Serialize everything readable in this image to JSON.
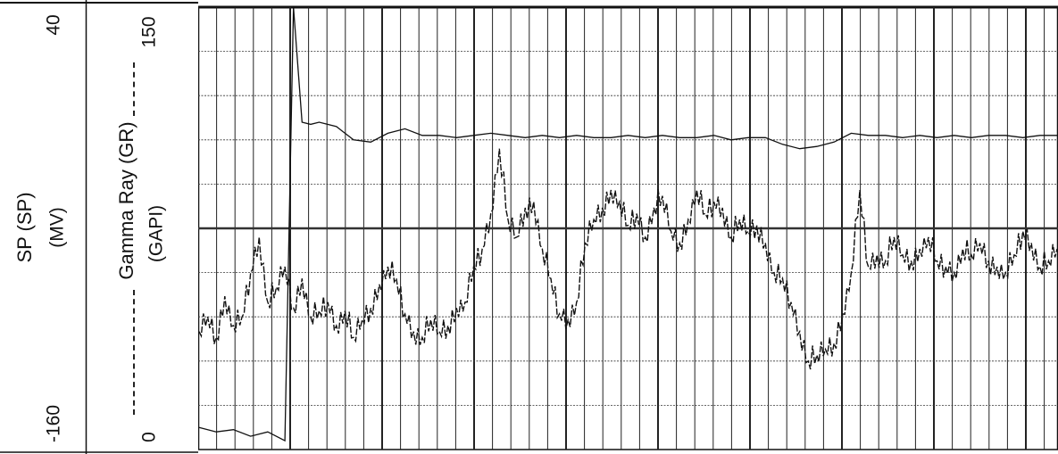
{
  "header": {
    "sp": {
      "name": "SP (SP)",
      "unit": "(MV)",
      "min": "-160",
      "max": "40"
    },
    "gr": {
      "name": "Gamma Ray (GR)",
      "unit": "(GAPI)",
      "min": "0",
      "max": "150"
    }
  },
  "chart_data": {
    "type": "line",
    "title": "",
    "xlabel": "",
    "ylabel": "",
    "orientation": "horizontal-depth-axis",
    "grid": true,
    "curves": [
      {
        "name": "SP (SP)",
        "unit": "MV",
        "range": [
          -160,
          40
        ],
        "color": "#111111",
        "x": [
          0,
          2,
          4,
          6,
          8,
          10,
          11,
          12,
          13,
          14,
          16,
          18,
          20,
          22,
          24,
          26,
          28,
          30,
          32,
          34,
          36,
          38,
          40,
          42,
          44,
          46,
          48,
          50,
          52,
          54,
          56,
          58,
          60,
          62,
          64,
          66,
          68,
          70,
          72,
          74,
          76,
          78,
          80,
          82,
          84,
          86,
          88,
          90,
          92,
          94,
          96,
          98,
          100
        ],
        "values": [
          -150,
          -152,
          -151,
          -154,
          -152,
          -156,
          40,
          -12,
          -13,
          -12,
          -14,
          -20,
          -21,
          -17,
          -15,
          -18,
          -18,
          -19,
          -18,
          -17,
          -18,
          -19,
          -18,
          -19,
          -18,
          -19,
          -19,
          -18,
          -19,
          -18,
          -19,
          -19,
          -18,
          -20,
          -19,
          -19,
          -22,
          -24,
          -23,
          -21,
          -17,
          -18,
          -18,
          -19,
          -18,
          -19,
          -18,
          -19,
          -18,
          -18,
          -19,
          -18,
          -18
        ]
      },
      {
        "name": "Gamma Ray (GR)",
        "unit": "GAPI",
        "range": [
          0,
          150
        ],
        "color": "#111111",
        "x": [
          0,
          1,
          2,
          3,
          4,
          5,
          6,
          7,
          8,
          9,
          10,
          11,
          12,
          13,
          14,
          15,
          16,
          17,
          18,
          19,
          20,
          21,
          22,
          23,
          24,
          25,
          26,
          27,
          28,
          29,
          30,
          31,
          32,
          33,
          34,
          35,
          36,
          37,
          38,
          39,
          40,
          41,
          42,
          43,
          44,
          45,
          46,
          47,
          48,
          49,
          50,
          51,
          52,
          53,
          54,
          55,
          56,
          57,
          58,
          59,
          60,
          61,
          62,
          63,
          64,
          65,
          66,
          67,
          68,
          69,
          70,
          71,
          72,
          73,
          74,
          75,
          76,
          77,
          78,
          79,
          80,
          81,
          82,
          83,
          84,
          85,
          86,
          87,
          88,
          89,
          90,
          91,
          92,
          93,
          94,
          95,
          96,
          97,
          98,
          99,
          100
        ],
        "values": [
          40,
          45,
          38,
          52,
          42,
          45,
          60,
          72,
          50,
          55,
          62,
          48,
          58,
          45,
          47,
          50,
          42,
          47,
          38,
          44,
          48,
          56,
          62,
          58,
          46,
          40,
          38,
          44,
          40,
          42,
          48,
          50,
          62,
          68,
          80,
          102,
          78,
          72,
          82,
          84,
          68,
          58,
          46,
          44,
          50,
          70,
          78,
          82,
          88,
          84,
          76,
          80,
          72,
          82,
          86,
          74,
          70,
          78,
          88,
          80,
          84,
          82,
          72,
          78,
          74,
          76,
          70,
          60,
          58,
          50,
          40,
          30,
          32,
          34,
          36,
          46,
          60,
          88,
          62,
          66,
          64,
          72,
          66,
          64,
          68,
          72,
          64,
          62,
          60,
          68,
          66,
          70,
          64,
          62,
          60,
          66,
          74,
          70,
          62,
          64,
          68
        ]
      }
    ]
  }
}
